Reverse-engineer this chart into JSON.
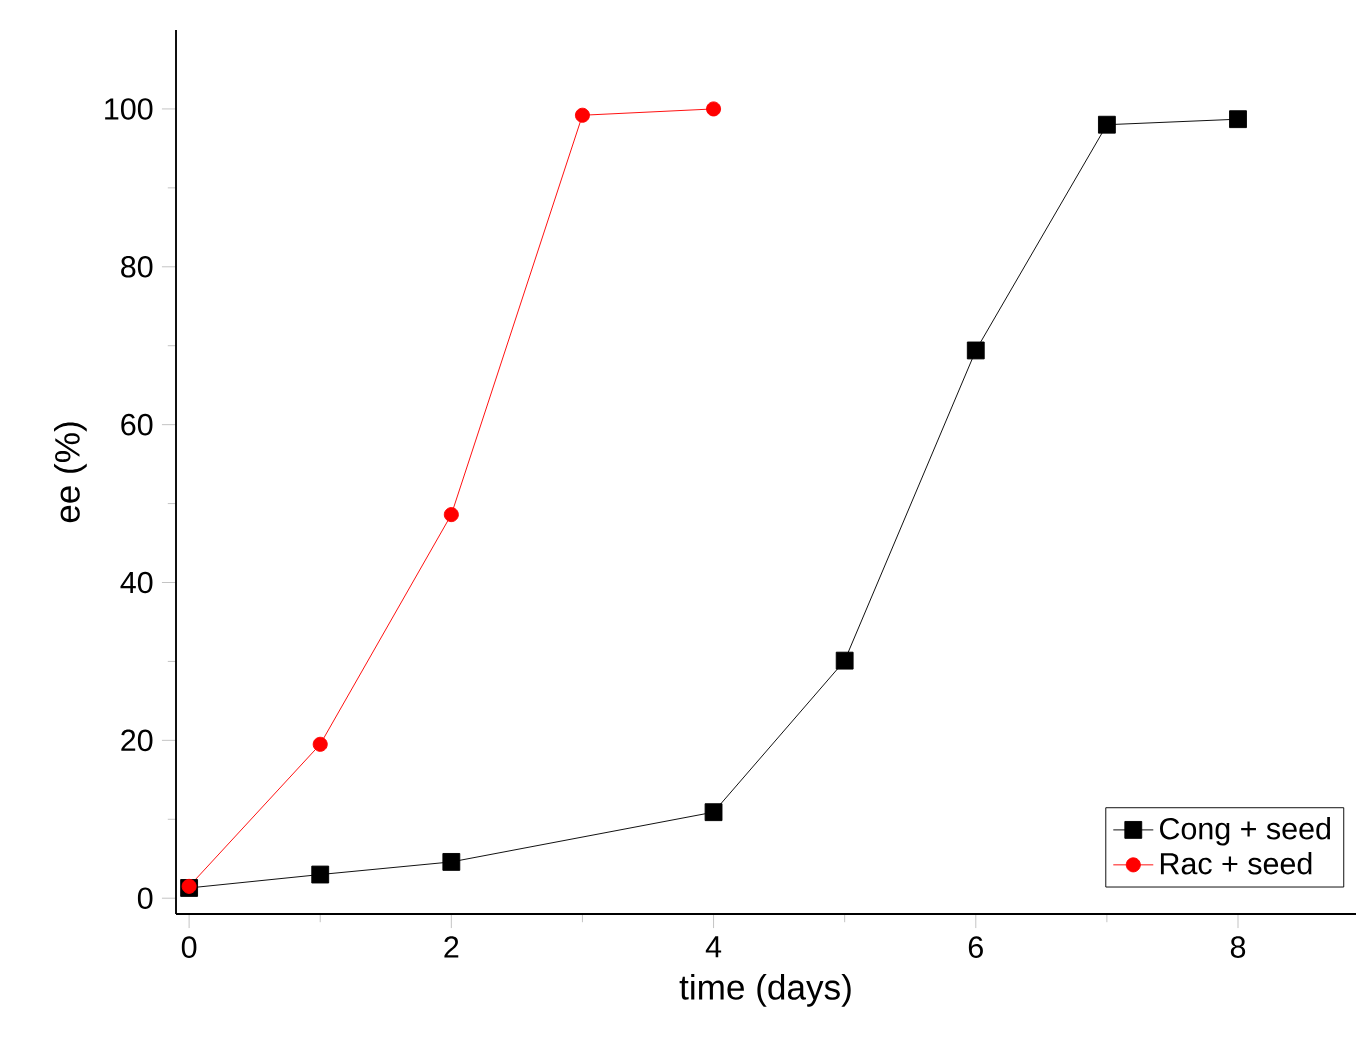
{
  "chart_data": {
    "type": "line",
    "xlabel": "time (days)",
    "ylabel": "ee (%)",
    "xlim": [
      -0.1,
      8.9
    ],
    "ylim": [
      -2,
      110
    ],
    "xticks": [
      0,
      2,
      4,
      6,
      8
    ],
    "yticks": [
      0,
      20,
      40,
      60,
      80,
      100
    ],
    "grid": false,
    "legend": "bottom right",
    "line_style": "solid",
    "series": [
      {
        "name": "Cong + seed",
        "color": "#000000",
        "marker": "square",
        "x": [
          0,
          1,
          2,
          4,
          5,
          6,
          7,
          8
        ],
        "values": [
          1.3,
          3.0,
          4.6,
          10.9,
          30.1,
          69.4,
          98.0,
          98.7
        ]
      },
      {
        "name": "Rac + seed",
        "color": "#ff0000",
        "marker": "circle",
        "x": [
          0,
          1,
          2,
          3,
          4
        ],
        "values": [
          1.5,
          19.5,
          48.6,
          99.2,
          100.0
        ]
      }
    ]
  }
}
